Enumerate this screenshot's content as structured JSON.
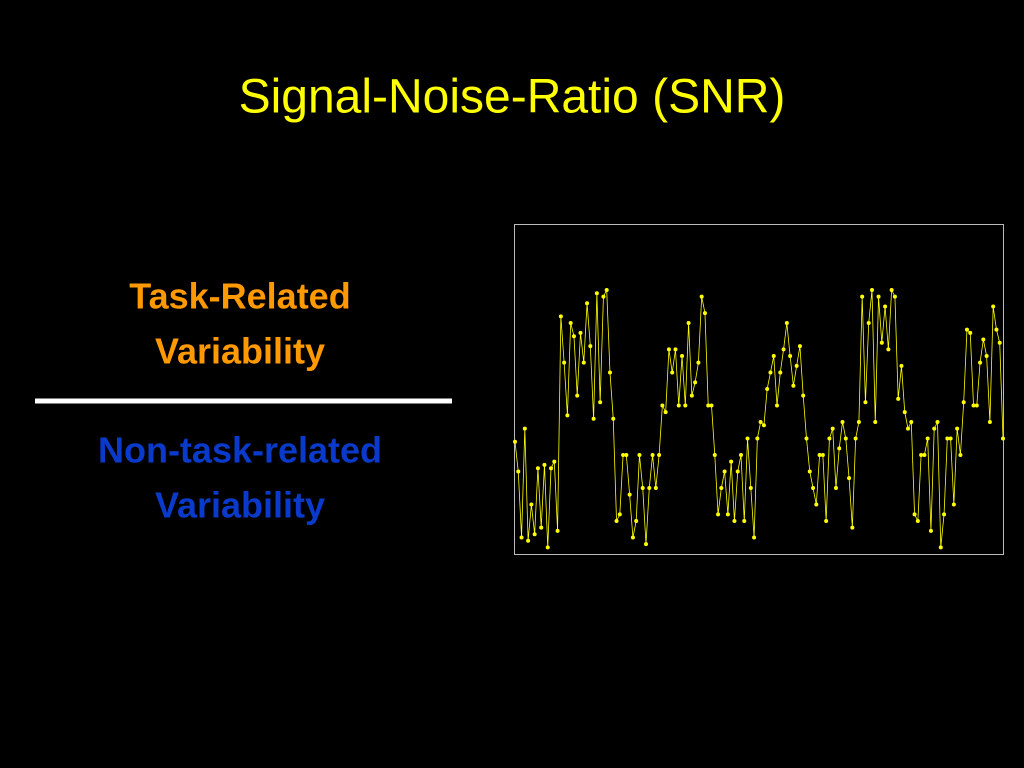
{
  "title": "Signal-Noise-Ratio (SNR)",
  "numerator": [
    "Task-Related",
    "Variability"
  ],
  "denominator": [
    "Non-task-related",
    "Variability"
  ],
  "chart_data": {
    "type": "line",
    "color": "#ffff00",
    "ylim": [
      0,
      100
    ],
    "values": [
      34,
      25,
      5,
      38,
      4,
      15,
      6,
      26,
      8,
      27,
      2,
      26,
      28,
      7,
      72,
      58,
      42,
      70,
      66,
      48,
      67,
      58,
      76,
      63,
      41,
      79,
      46,
      78,
      80,
      55,
      41,
      10,
      12,
      30,
      30,
      18,
      5,
      10,
      30,
      20,
      3,
      20,
      30,
      20,
      30,
      45,
      43,
      62,
      55,
      62,
      45,
      60,
      45,
      70,
      48,
      52,
      58,
      78,
      73,
      45,
      45,
      30,
      12,
      20,
      25,
      12,
      28,
      10,
      25,
      30,
      10,
      35,
      20,
      5,
      35,
      40,
      39,
      50,
      55,
      60,
      45,
      55,
      62,
      70,
      60,
      51,
      57,
      63,
      48,
      35,
      25,
      20,
      15,
      30,
      30,
      10,
      35,
      38,
      20,
      32,
      40,
      35,
      23,
      8,
      35,
      40,
      78,
      46,
      70,
      80,
      40,
      78,
      64,
      75,
      62,
      80,
      78,
      47,
      57,
      43,
      38,
      40,
      12,
      10,
      30,
      30,
      35,
      7,
      38,
      40,
      2,
      12,
      35,
      35,
      15,
      38,
      30,
      46,
      68,
      67,
      45,
      45,
      58,
      65,
      60,
      40,
      75,
      68,
      64,
      35
    ]
  }
}
